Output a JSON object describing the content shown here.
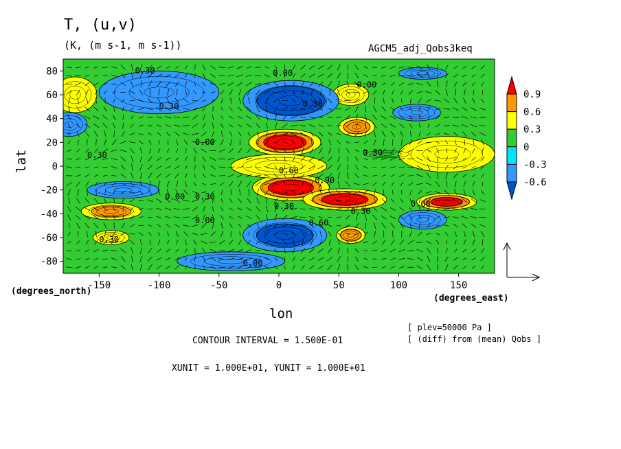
{
  "chart_data": {
    "type": "heatmap",
    "title": "T, (u,v)",
    "subtitle": "(K, (m s-1, m s-1))",
    "run_name": "AGCM5_adj_Qobs3keq",
    "xlabel": "lon",
    "ylabel": "lat",
    "x_unit_label": "(degrees_east)",
    "y_unit_label": "(degrees_north)",
    "xlim": [
      -180,
      180
    ],
    "ylim": [
      -90,
      90
    ],
    "x_ticks": [
      "-150",
      "-100",
      "-50",
      "0",
      "50",
      "100",
      "150"
    ],
    "x_tick_values": [
      -150,
      -100,
      -50,
      0,
      50,
      100,
      150
    ],
    "y_ticks": [
      "80",
      "60",
      "40",
      "20",
      "0",
      "-20",
      "-40",
      "-60",
      "-80"
    ],
    "y_tick_values": [
      80,
      60,
      40,
      20,
      0,
      -20,
      -40,
      -60,
      -80
    ],
    "colorbar": {
      "levels": [
        "0.9",
        "0.6",
        "0.3",
        "0",
        "-0.3",
        "-0.6"
      ],
      "colors": [
        "#ff0000",
        "#ff9900",
        "#ffff00",
        "#33cc33",
        "#00e5ff",
        "#3399ff",
        "#0055cc"
      ]
    },
    "contour_labels": [
      "0.30",
      "0.00",
      "0.00",
      "0.30",
      "0.30",
      "0.00",
      "0.30",
      "0.60",
      "0.90",
      "0.30",
      "0.00",
      "0.30",
      "0.00",
      "0.30",
      "0.60",
      "0.30",
      "0.00",
      "0.60",
      "0.30"
    ],
    "contour_interval": "CONTOUR INTERVAL = 1.500E-01",
    "vector_units": "XUNIT = 1.000E+01, YUNIT = 1.000E+01",
    "level_note": "[ plev=50000 Pa ]",
    "diff_note": "[ (diff) from (mean) Qobs ]",
    "anomalies": [
      {
        "lon": 5,
        "lat": 20,
        "value": 1.1,
        "r_lon": 30,
        "r_lat": 11
      },
      {
        "lon": 10,
        "lat": -18,
        "value": 1.1,
        "r_lon": 32,
        "r_lat": 11
      },
      {
        "lon": 55,
        "lat": -28,
        "value": 1.0,
        "r_lon": 35,
        "r_lat": 9
      },
      {
        "lon": 140,
        "lat": -30,
        "value": 0.95,
        "r_lon": 25,
        "r_lat": 7
      },
      {
        "lon": 65,
        "lat": 33,
        "value": 0.8,
        "r_lon": 15,
        "r_lat": 8
      },
      {
        "lon": 60,
        "lat": -58,
        "value": 0.7,
        "r_lon": 12,
        "r_lat": 7
      },
      {
        "lon": 60,
        "lat": 60,
        "value": 0.45,
        "r_lon": 15,
        "r_lat": 9
      },
      {
        "lon": -140,
        "lat": -38,
        "value": 0.6,
        "r_lon": 25,
        "r_lat": 7
      },
      {
        "lon": -140,
        "lat": -60,
        "value": 0.5,
        "r_lon": 15,
        "r_lat": 6
      },
      {
        "lon": -170,
        "lat": 60,
        "value": 0.45,
        "r_lon": 18,
        "r_lat": 15
      },
      {
        "lon": 0,
        "lat": 0,
        "value": 0.5,
        "r_lon": 40,
        "r_lat": 10
      },
      {
        "lon": 140,
        "lat": 10,
        "value": 0.35,
        "r_lon": 40,
        "r_lat": 15
      },
      {
        "lon": 10,
        "lat": 55,
        "value": -0.75,
        "r_lon": 40,
        "r_lat": 17
      },
      {
        "lon": -100,
        "lat": 62,
        "value": -0.4,
        "r_lon": 50,
        "r_lat": 18
      },
      {
        "lon": 5,
        "lat": -58,
        "value": -0.65,
        "r_lon": 35,
        "r_lat": 14
      },
      {
        "lon": -130,
        "lat": -20,
        "value": -0.4,
        "r_lon": 30,
        "r_lat": 7
      },
      {
        "lon": 115,
        "lat": 45,
        "value": -0.35,
        "r_lon": 20,
        "r_lat": 7
      },
      {
        "lon": 120,
        "lat": -45,
        "value": -0.3,
        "r_lon": 20,
        "r_lat": 8
      },
      {
        "lon": 120,
        "lat": 78,
        "value": -0.35,
        "r_lon": 20,
        "r_lat": 5
      },
      {
        "lon": -175,
        "lat": 35,
        "value": -0.35,
        "r_lon": 15,
        "r_lat": 10
      },
      {
        "lon": -40,
        "lat": -80,
        "value": -0.4,
        "r_lon": 45,
        "r_lat": 8
      },
      {
        "lon": 90,
        "lat": 10,
        "value": -0.2,
        "r_lon": 25,
        "r_lat": 4
      }
    ]
  }
}
